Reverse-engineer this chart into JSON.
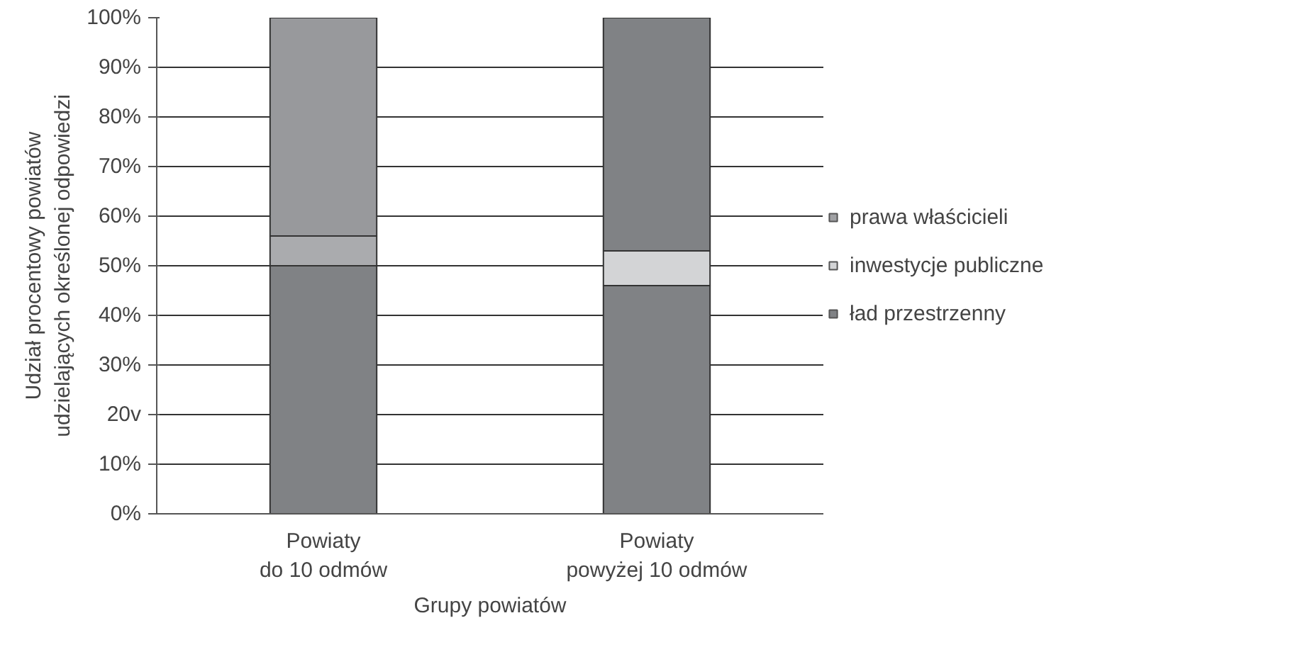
{
  "chart_data": {
    "type": "bar",
    "stacked": true,
    "xlabel": "Grupy powiatów",
    "ylabel": "Udział procentowy powiatów\nudzielających określonej odpowiedzi",
    "categories": [
      "Powiaty\ndo 10 odmów",
      "Powiaty\npowyżej 10 odmów"
    ],
    "series": [
      {
        "name": "ład przestrzenny",
        "color": "#808285",
        "colors": [
          "#808285",
          "#808285"
        ],
        "values": [
          50,
          46
        ]
      },
      {
        "name": "inwestycje publiczne",
        "color": "#d3d4d6",
        "colors": [
          "#aaabae",
          "#d3d4d6"
        ],
        "values": [
          6,
          7
        ]
      },
      {
        "name": "prawa właścicieli",
        "color": "#a0a1a4",
        "colors": [
          "#98999c",
          "#808285"
        ],
        "values": [
          44,
          47
        ]
      }
    ],
    "ylim": [
      0,
      100
    ],
    "yticks": [
      {
        "value": 0,
        "label": "0%"
      },
      {
        "value": 10,
        "label": "10%"
      },
      {
        "value": 20,
        "label": "20v"
      },
      {
        "value": 30,
        "label": "30%"
      },
      {
        "value": 40,
        "label": "40%"
      },
      {
        "value": 50,
        "label": "50%"
      },
      {
        "value": 60,
        "label": "60%"
      },
      {
        "value": 70,
        "label": "70%"
      },
      {
        "value": 80,
        "label": "80%"
      },
      {
        "value": 90,
        "label": "90%"
      },
      {
        "value": 100,
        "label": "100%"
      }
    ],
    "grid": "y",
    "legend": "right"
  }
}
